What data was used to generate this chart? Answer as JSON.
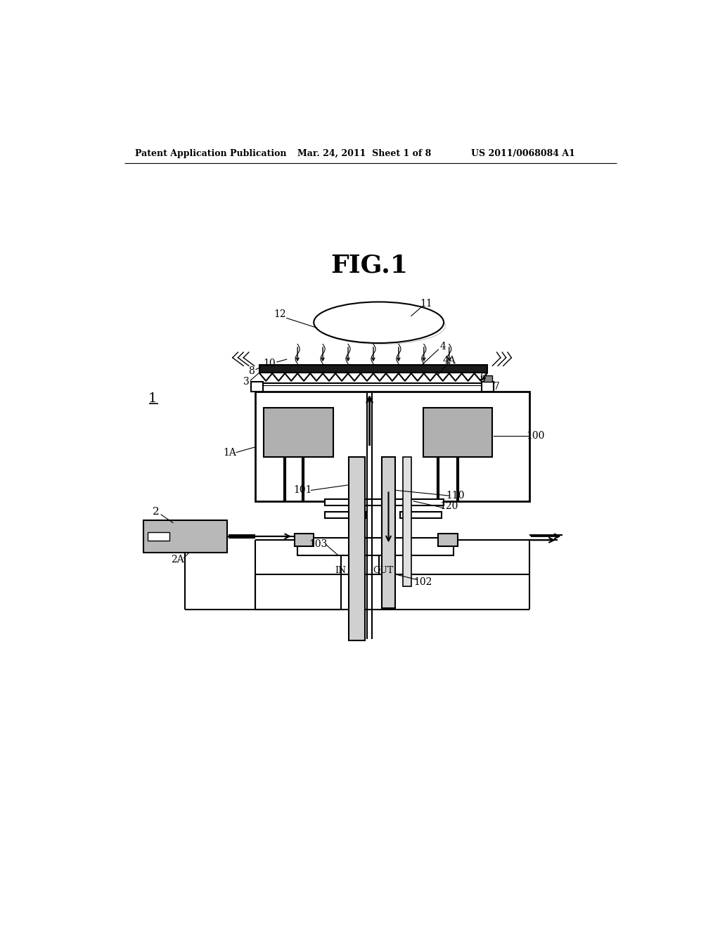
{
  "bg_color": "#ffffff",
  "header_left": "Patent Application Publication",
  "header_mid": "Mar. 24, 2011  Sheet 1 of 8",
  "header_right": "US 2011/0068084 A1",
  "fig_title": "FIG.1"
}
